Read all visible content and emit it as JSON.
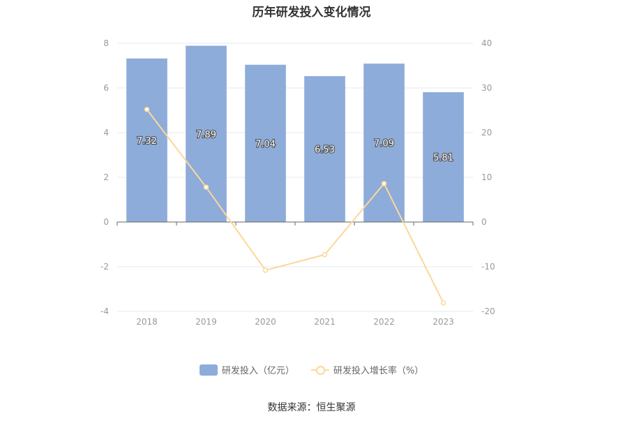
{
  "title": "历年研发投入变化情况",
  "source": "数据来源：恒生聚源",
  "colors": {
    "bar": "#8eacd9",
    "line": "#fbd898",
    "grid": "#e6e8ef",
    "axis": "#666666",
    "tick_label": "#999999"
  },
  "chart_data": {
    "type": "bar",
    "title": "历年研发投入变化情况",
    "categories": [
      "2018",
      "2019",
      "2020",
      "2021",
      "2022",
      "2023"
    ],
    "series": [
      {
        "name": "研发投入（亿元）",
        "type": "bar",
        "axis": "left",
        "values": [
          7.32,
          7.89,
          7.04,
          6.53,
          7.09,
          5.81
        ]
      },
      {
        "name": "研发投入增长率（%）",
        "type": "line",
        "axis": "right",
        "values": [
          25.2,
          7.8,
          -10.8,
          -7.3,
          8.6,
          -18.1
        ]
      }
    ],
    "data_labels": [
      "7.32",
      "7.89",
      "7.04",
      "6.53",
      "7.09",
      "5.81"
    ],
    "y_left": {
      "ylim": [
        -4,
        8
      ],
      "ticks": [
        "-4",
        "-2",
        "0",
        "2",
        "4",
        "6",
        "8"
      ]
    },
    "y_right": {
      "ylim": [
        -20,
        40
      ],
      "ticks": [
        "-20",
        "-10",
        "0",
        "10",
        "20",
        "30",
        "40"
      ]
    },
    "grid": true,
    "legend_position": "bottom-center"
  }
}
